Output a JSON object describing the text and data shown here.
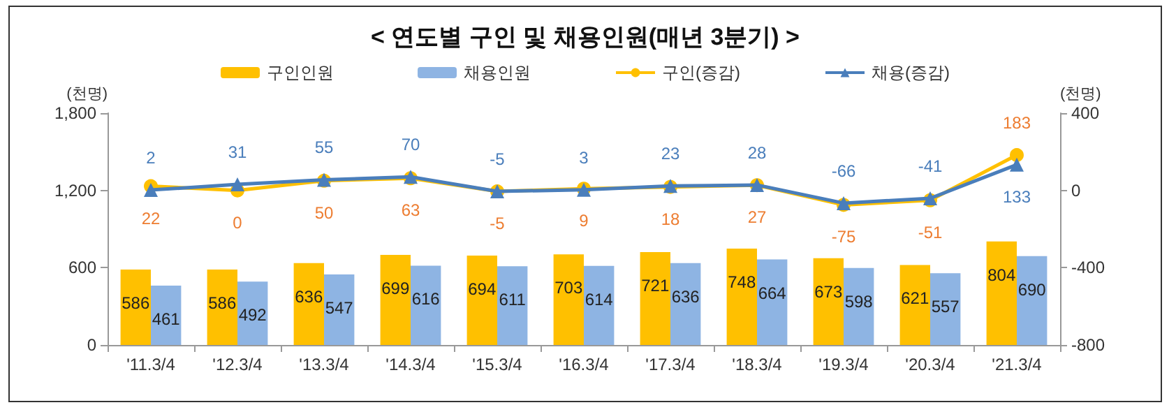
{
  "chart_data": {
    "type": "bar",
    "title": "< 연도별 구인 및 채용인원(매년 3분기) >",
    "ylabel": "(천명)",
    "y2label": "(천명)",
    "categories": [
      "'11.3/4",
      "'12.3/4",
      "'13.3/4",
      "'14.3/4",
      "'15.3/4",
      "'16.3/4",
      "'17.3/4",
      "'18.3/4",
      "'19.3/4",
      "'20.3/4",
      "'21.3/4"
    ],
    "series": [
      {
        "name": "구인인원",
        "color": "#ffc000",
        "values": [
          586,
          586,
          636,
          699,
          694,
          703,
          721,
          748,
          673,
          621,
          804
        ]
      },
      {
        "name": "채용인원",
        "color": "#8eb4e3",
        "values": [
          461,
          492,
          547,
          616,
          611,
          614,
          636,
          664,
          598,
          557,
          690
        ]
      },
      {
        "name": "구인(증감)",
        "type": "line",
        "axis": "y2",
        "marker": "circle",
        "color": "#ffc000",
        "values": [
          22,
          0,
          50,
          63,
          -5,
          9,
          18,
          27,
          -75,
          -51,
          183
        ]
      },
      {
        "name": "채용(증감)",
        "type": "line",
        "axis": "y2",
        "marker": "triangle",
        "color": "#4a7ebb",
        "values": [
          2,
          31,
          55,
          70,
          -5,
          3,
          23,
          28,
          -66,
          -41,
          133
        ]
      }
    ],
    "ylim": [
      0,
      1800
    ],
    "yticks": [
      0,
      600,
      {
        "value": 1200,
        "label": "1,200"
      },
      {
        "value": 1800,
        "label": "1,800"
      }
    ],
    "y2lim": [
      -800,
      400
    ],
    "y2ticks": [
      -800,
      -400,
      0,
      400
    ],
    "data_labels": true,
    "grid": false,
    "legend": "top",
    "line_style": "solid"
  }
}
